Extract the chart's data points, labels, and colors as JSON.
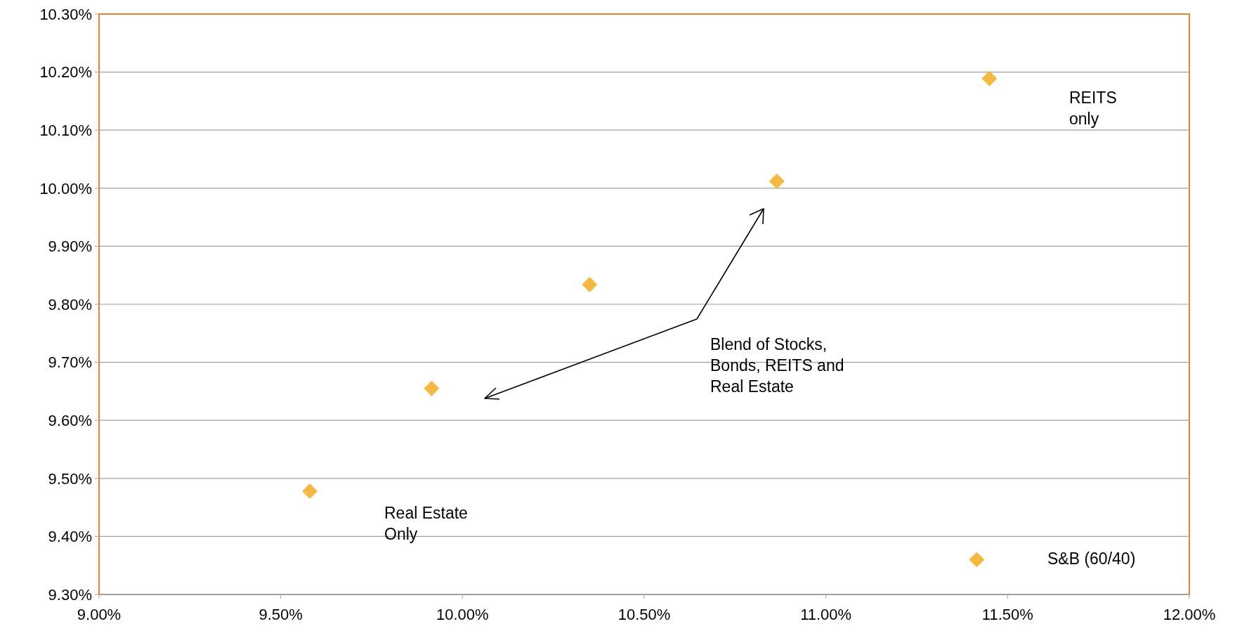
{
  "chart_data": {
    "type": "scatter",
    "color": "#f5b942",
    "marker": "diamond",
    "grid": "y",
    "x": [
      9.58,
      9.915,
      10.35,
      10.865,
      11.45,
      11.415
    ],
    "values": [
      9.478,
      9.655,
      9.834,
      10.012,
      10.189,
      9.36
    ],
    "xlim": [
      9,
      12
    ],
    "ylim": [
      9.3,
      10.3
    ],
    "xticks": [
      {
        "value": 9,
        "label": "9.00%"
      },
      {
        "value": 9.5,
        "label": "9.50%"
      },
      {
        "value": 10,
        "label": "10.00%"
      },
      {
        "value": 10.5,
        "label": "10.50%"
      },
      {
        "value": 11,
        "label": "11.00%"
      },
      {
        "value": 11.5,
        "label": "11.50%"
      },
      {
        "value": 12,
        "label": "12.00%"
      }
    ],
    "yticks": [
      {
        "value": 9.3,
        "label": "9.30%"
      },
      {
        "value": 9.4,
        "label": "9.40%"
      },
      {
        "value": 9.5,
        "label": "9.50%"
      },
      {
        "value": 9.6,
        "label": "9.60%"
      },
      {
        "value": 9.7,
        "label": "9.70%"
      },
      {
        "value": 9.8,
        "label": "9.80%"
      },
      {
        "value": 9.9,
        "label": "9.90%"
      },
      {
        "value": 10,
        "label": "10.00%"
      },
      {
        "value": 10.1,
        "label": "10.10%"
      },
      {
        "value": 10.2,
        "label": "10.20%"
      },
      {
        "value": 10.3,
        "label": "10.30%"
      }
    ],
    "annotations": [
      "REITS\nonly",
      "Blend of Stocks,\nBonds, REITS and\nReal Estate",
      "Real Estate\nOnly",
      "S&B (60/40)"
    ]
  }
}
